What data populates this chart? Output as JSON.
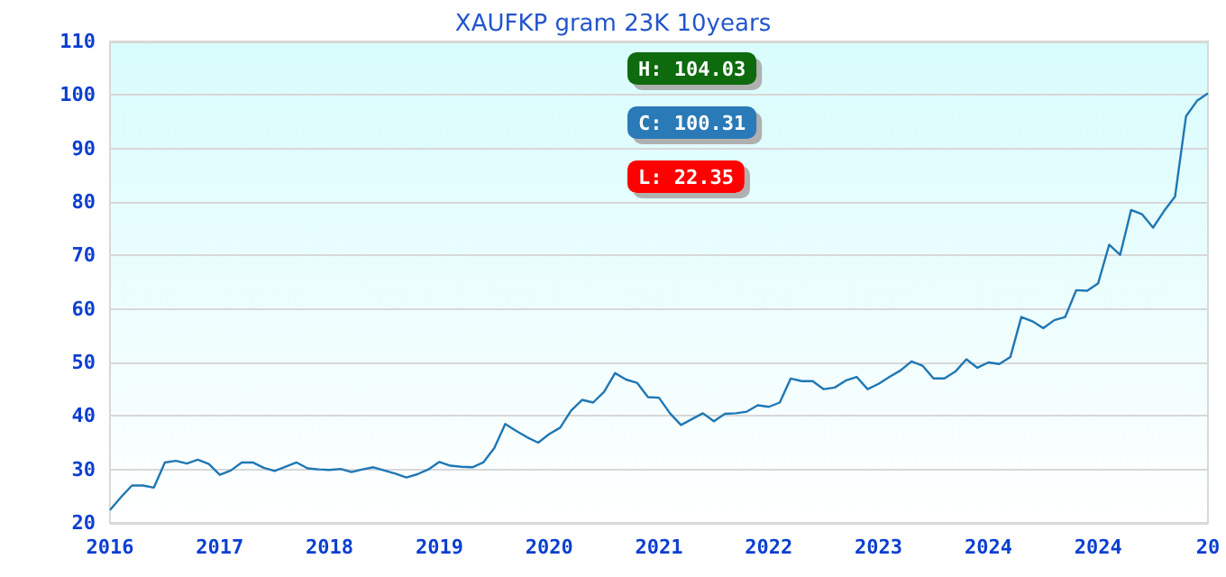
{
  "chart_data": {
    "type": "line",
    "title": "XAUFKP gram 23K 10years",
    "annotations": [
      "H: 104.03",
      "C: 100.31",
      "L: 22.35"
    ],
    "categories": [
      "2016",
      null,
      null,
      null,
      null,
      null,
      null,
      null,
      null,
      null,
      "2017",
      null,
      null,
      null,
      null,
      null,
      null,
      null,
      null,
      null,
      "2018",
      null,
      null,
      null,
      null,
      null,
      null,
      null,
      null,
      null,
      "2019",
      null,
      null,
      null,
      null,
      null,
      null,
      null,
      null,
      null,
      "2020",
      null,
      null,
      null,
      null,
      null,
      null,
      null,
      null,
      null,
      "2021",
      null,
      null,
      null,
      null,
      null,
      null,
      null,
      null,
      null,
      "2022",
      null,
      null,
      null,
      null,
      null,
      null,
      null,
      null,
      null,
      "2023",
      null,
      null,
      null,
      null,
      null,
      null,
      null,
      null,
      null,
      "2024",
      null,
      null,
      null,
      null,
      null,
      null,
      null,
      null,
      null,
      "2024",
      null,
      null,
      null,
      null,
      null,
      null,
      null,
      null,
      null,
      "20"
    ],
    "ylim": [
      20,
      110
    ],
    "yticks": [
      20,
      30,
      40,
      50,
      60,
      70,
      80,
      90,
      100,
      110
    ],
    "grid": "y",
    "marker": "none",
    "line_style": "solid",
    "series": [
      {
        "color": "#1f77b4",
        "values": [
          22.4,
          24.8,
          27,
          27,
          26.6,
          31.3,
          31.6,
          31.1,
          31.8,
          31,
          29,
          29.8,
          31.3,
          31.3,
          30.3,
          29.7,
          30.5,
          31.3,
          30.2,
          30,
          29.9,
          30.1,
          29.5,
          30,
          30.4,
          29.8,
          29.2,
          28.5,
          29.1,
          30,
          31.4,
          30.7,
          30.5,
          30.4,
          31.3,
          34,
          38.5,
          37.2,
          36,
          35,
          36.6,
          37.8,
          41,
          43,
          42.5,
          44.5,
          48,
          46.8,
          46.2,
          43.5,
          43.4,
          40.5,
          38.3,
          39.4,
          40.5,
          39,
          40.4,
          40.5,
          40.8,
          42,
          41.7,
          42.5,
          47,
          46.5,
          46.5,
          45,
          45.3,
          46.6,
          47.3,
          45,
          46,
          47.3,
          48.5,
          50.2,
          49.4,
          47,
          47,
          48.3,
          50.6,
          49,
          50,
          49.7,
          51,
          58.5,
          57.7,
          56.4,
          57.9,
          58.5,
          63.5,
          63.4,
          64.8,
          72,
          70.1,
          78.5,
          77.7,
          75.2,
          78.3,
          81,
          96,
          98.9,
          100.3
        ]
      }
    ]
  }
}
